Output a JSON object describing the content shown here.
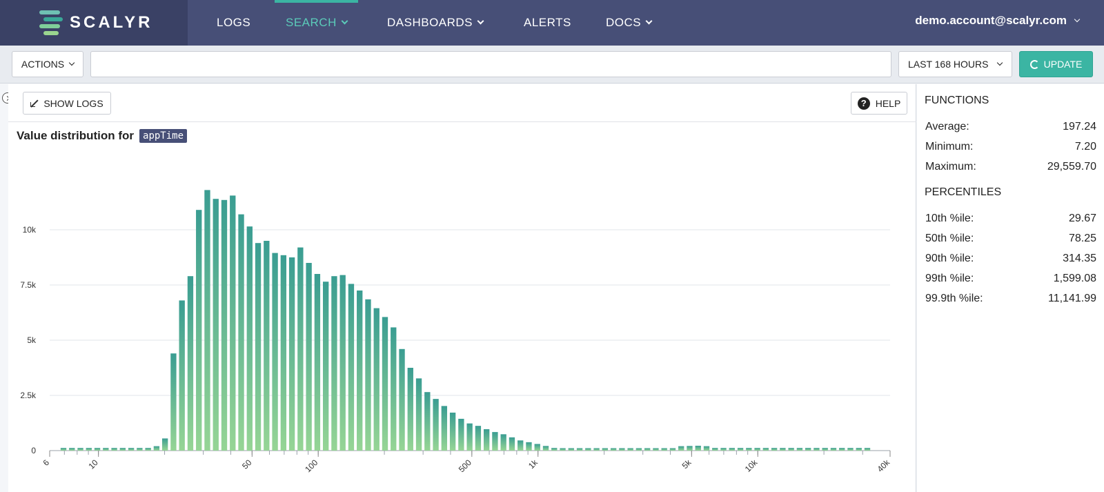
{
  "brand": {
    "name": "SCALYR",
    "mark_colors": [
      "#6fc0b3",
      "#3aa898",
      "#7fcf9a",
      "#9ad58f"
    ]
  },
  "nav": {
    "items": [
      {
        "label": "LOGS",
        "dropdown": false,
        "active": false
      },
      {
        "label": "SEARCH",
        "dropdown": true,
        "active": true
      },
      {
        "label": "DASHBOARDS",
        "dropdown": true,
        "active": false
      },
      {
        "label": "ALERTS",
        "dropdown": false,
        "active": false
      },
      {
        "label": "DOCS",
        "dropdown": true,
        "active": false
      }
    ],
    "user": "demo.account@scalyr.com"
  },
  "toolbar": {
    "actions_label": "ACTIONS",
    "query_value": "",
    "time_range_label": "LAST 168 HOURS",
    "update_label": "UPDATE"
  },
  "panel": {
    "show_logs_label": "SHOW LOGS",
    "help_label": "HELP",
    "title_prefix": "Value distribution for",
    "field_name": "appTime"
  },
  "side": {
    "functions_title": "FUNCTIONS",
    "functions": [
      {
        "label": "Average:",
        "value": "197.24"
      },
      {
        "label": "Minimum:",
        "value": "7.20"
      },
      {
        "label": "Maximum:",
        "value": "29,559.70"
      }
    ],
    "percentiles_title": "PERCENTILES",
    "percentiles": [
      {
        "label": "10th %ile:",
        "value": "29.67"
      },
      {
        "label": "50th %ile:",
        "value": "78.25"
      },
      {
        "label": "90th %ile:",
        "value": "314.35"
      },
      {
        "label": "99th %ile:",
        "value": "1,599.08"
      },
      {
        "label": "99.9th %ile:",
        "value": "11,141.99"
      }
    ]
  },
  "colors": {
    "nav_bg": "#474f77",
    "accent": "#3bb5a3",
    "bar_top": "#3a9d92",
    "bar_bottom": "#96d595"
  },
  "chart_data": {
    "type": "bar",
    "x_scale": "log",
    "xlim": [
      6,
      40000
    ],
    "ylim": [
      0,
      13000
    ],
    "x_ticks": [
      6,
      10,
      50,
      100,
      500,
      1000,
      5000,
      10000,
      40000
    ],
    "x_tick_labels": [
      "6",
      "10",
      "50",
      "100",
      "500",
      "1k",
      "5k",
      "10k",
      "40k"
    ],
    "y_ticks": [
      0,
      2500,
      5000,
      7500,
      10000
    ],
    "y_tick_labels": [
      "0",
      "2.5k",
      "5k",
      "7.5k",
      "10k"
    ],
    "grid": true,
    "values": [
      120,
      120,
      120,
      120,
      120,
      120,
      120,
      120,
      120,
      120,
      120,
      200,
      550,
      4400,
      6800,
      7900,
      10900,
      11800,
      11400,
      11350,
      11550,
      10700,
      10150,
      9400,
      9500,
      8950,
      8850,
      8750,
      9200,
      8500,
      8000,
      7650,
      7900,
      7950,
      7550,
      7250,
      6850,
      6450,
      6050,
      5580,
      4600,
      3750,
      3270,
      2650,
      2340,
      2020,
      1720,
      1440,
      1230,
      1120,
      970,
      840,
      740,
      600,
      460,
      380,
      300,
      210,
      120,
      110,
      110,
      110,
      110,
      110,
      110,
      110,
      110,
      110,
      110,
      110,
      110,
      110,
      110,
      200,
      210,
      220,
      200,
      120,
      120,
      120,
      120,
      120,
      120,
      120,
      120,
      120,
      120,
      120,
      120,
      120,
      120,
      120,
      120,
      120,
      120,
      120
    ]
  }
}
